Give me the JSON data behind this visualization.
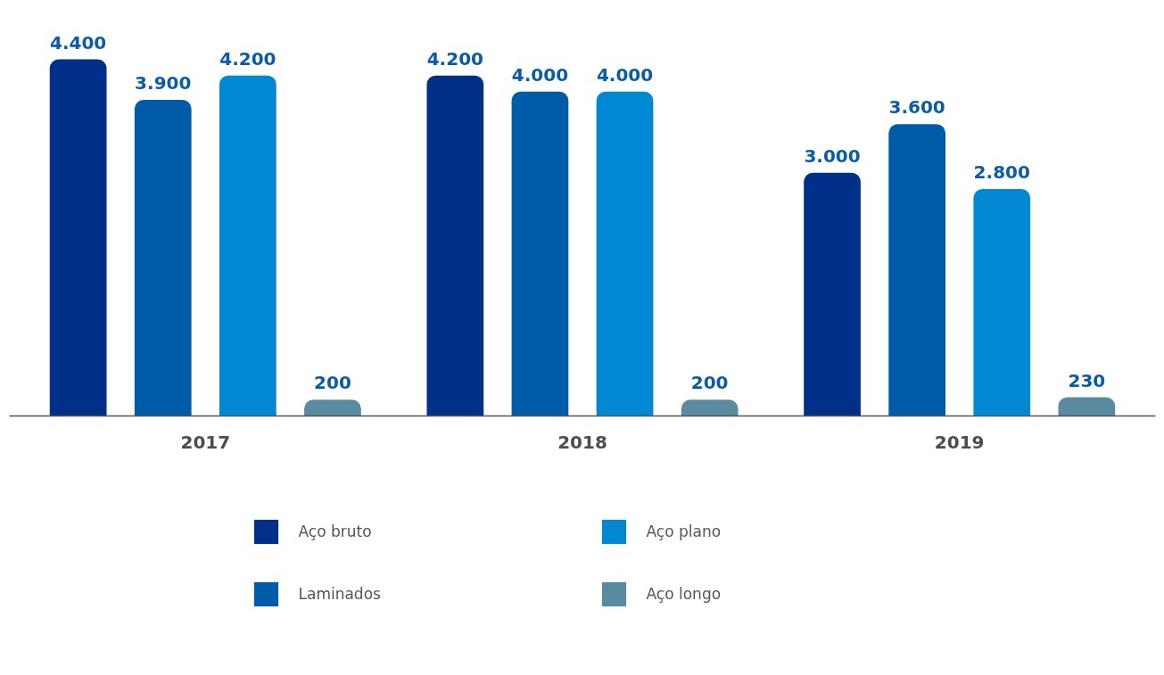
{
  "chart_data": {
    "type": "bar",
    "categories": [
      "2017",
      "2018",
      "2019"
    ],
    "series": [
      {
        "name": "Aço bruto",
        "color": "#003087",
        "values": [
          4400,
          4200,
          3000
        ],
        "value_labels": [
          "4.400",
          "4.200",
          "3.000"
        ]
      },
      {
        "name": "Laminados",
        "color": "#005ca9",
        "values": [
          3900,
          4000,
          3600
        ],
        "value_labels": [
          "3.900",
          "4.000",
          "3.600"
        ]
      },
      {
        "name": "Aço plano",
        "color": "#0089d2",
        "values": [
          4200,
          4000,
          2800
        ],
        "value_labels": [
          "4.200",
          "4.000",
          "2.800"
        ]
      },
      {
        "name": "Aço longo",
        "color": "#5a8aa0",
        "values": [
          200,
          200,
          230
        ],
        "value_labels": [
          "200",
          "200",
          "230"
        ]
      }
    ],
    "legend": "bottom"
  }
}
